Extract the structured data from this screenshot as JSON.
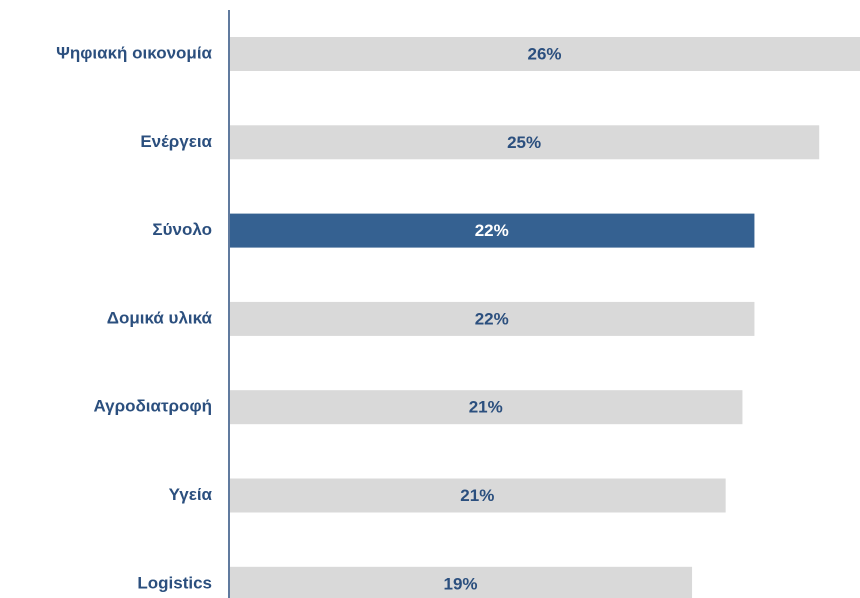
{
  "chart_data": {
    "type": "barh",
    "categories": [
      "Ψηφιακή οικονομία",
      "Ενέργεια",
      "Σύνολο",
      "Δομικά υλικά",
      "Αγροδιατροφή",
      "Υγεία",
      "Logistics"
    ],
    "values": [
      26.3,
      24.6,
      21.9,
      21.9,
      21.4,
      20.7,
      19.3
    ],
    "value_labels": [
      "26%",
      "25%",
      "22%",
      "22%",
      "21%",
      "21%",
      "19%"
    ],
    "colors": [
      "#d9d9d9",
      "#d9d9d9",
      "#356191",
      "#d9d9d9",
      "#d9d9d9",
      "#d9d9d9",
      "#d9d9d9"
    ],
    "label_colors": [
      "#2b4f7e",
      "#2b4f7e",
      "#ffffff",
      "#2b4f7e",
      "#2b4f7e",
      "#2b4f7e",
      "#2b4f7e"
    ]
  }
}
